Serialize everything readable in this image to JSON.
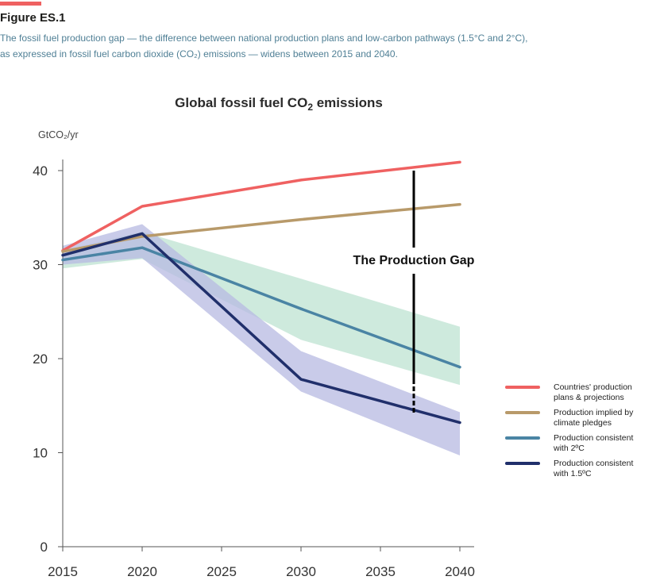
{
  "figure": {
    "label": "Figure ES.1",
    "caption_line1": "The fossil fuel production gap — the difference between national production plans and low-carbon pathways (1.5°C and 2°C),",
    "caption_line2": "as expressed in fossil fuel carbon dioxide (CO₂) emissions — widens between 2015 and 2040.",
    "accent_color": "#ef6161"
  },
  "chart_data": {
    "type": "line",
    "title_main": "Global fossil fuel CO",
    "title_sub": "2",
    "title_tail": " emissions",
    "ylabel": "GtCO₂/yr",
    "x": [
      2015,
      2020,
      2030,
      2040
    ],
    "xticks": [
      2015,
      2020,
      2025,
      2030,
      2035,
      2040
    ],
    "xtick_labels": [
      "2015",
      "2020",
      "2025",
      "2030",
      "2035",
      "2040"
    ],
    "yticks": [
      0,
      10,
      20,
      30,
      40
    ],
    "ytick_labels": [
      "0",
      "10",
      "20",
      "30",
      "40"
    ],
    "xlim": [
      2015,
      2040
    ],
    "ylim": [
      0,
      40
    ],
    "grid": false,
    "legend_position": "right",
    "series": [
      {
        "name": "Countries' production plans & projections",
        "legend_lines": [
          "Countries' production",
          "plans & projections"
        ],
        "color": "#ef6161",
        "x": [
          2015,
          2020,
          2030,
          2040
        ],
        "values": [
          31.5,
          36.2,
          39.0,
          40.9
        ]
      },
      {
        "name": "Production implied by climate pledges",
        "legend_lines": [
          "Production implied by",
          "climate pledges"
        ],
        "color": "#b89a6a",
        "x": [
          2015,
          2020,
          2030,
          2040
        ],
        "values": [
          31.4,
          33.0,
          34.8,
          36.4
        ]
      },
      {
        "name": "Production consistent with 2°C",
        "legend_lines": [
          "Production consistent",
          "with 2ºC"
        ],
        "color": "#4a84a4",
        "x": [
          2015,
          2020,
          2030,
          2040
        ],
        "values": [
          30.5,
          31.8,
          25.3,
          19.1
        ],
        "band_upper": [
          31.5,
          33.5,
          28.5,
          23.4
        ],
        "band_lower": [
          29.6,
          30.6,
          22.0,
          17.2
        ],
        "band_color": "#bde3d1"
      },
      {
        "name": "Production consistent with 1.5°C",
        "legend_lines": [
          "Production consistent",
          "with 1.5ºC"
        ],
        "color": "#202f6b",
        "x": [
          2015,
          2020,
          2030,
          2040
        ],
        "values": [
          31.0,
          33.3,
          17.8,
          13.2
        ],
        "band_upper": [
          32.0,
          34.3,
          20.8,
          14.3
        ],
        "band_lower": [
          30.0,
          30.7,
          16.5,
          9.7
        ],
        "band_color": "#b7b9e2"
      }
    ],
    "annotation": {
      "text": "The Production Gap",
      "x": 2037.1,
      "y_top": 40.0,
      "y_bottom": 14.2
    }
  }
}
